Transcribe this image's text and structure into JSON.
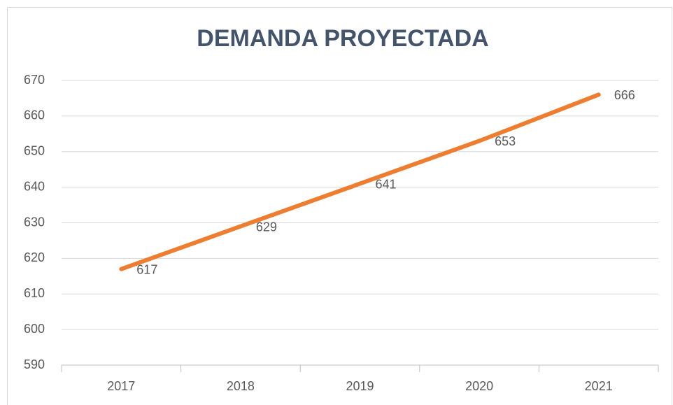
{
  "chart_data": {
    "type": "line",
    "title": "DEMANDA PROYECTADA",
    "categories": [
      "2017",
      "2018",
      "2019",
      "2020",
      "2021"
    ],
    "values": [
      617,
      629,
      641,
      653,
      666
    ],
    "color": "#ED7D31",
    "ylim": [
      590,
      670
    ],
    "yticks": [
      590,
      600,
      610,
      620,
      630,
      640,
      650,
      660,
      670
    ],
    "grid": true
  }
}
